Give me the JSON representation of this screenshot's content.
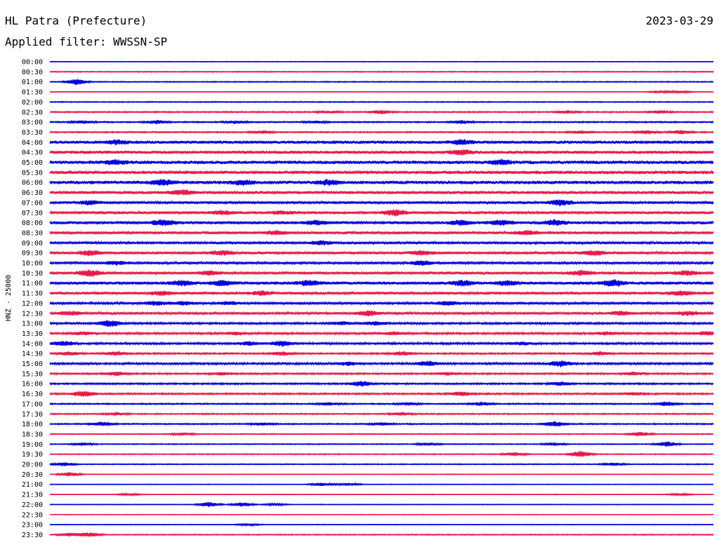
{
  "header": {
    "station": "HL Patra (Prefecture)",
    "date": "2023-03-29",
    "filter_label": "Applied filter:",
    "filter_value": "WWSSN-SP"
  },
  "chart_data": {
    "type": "line",
    "title": "HL Patra (Prefecture)",
    "ylabel": "HNZ - 25000",
    "series_colors": [
      "#0000dd",
      "#e8174a"
    ],
    "grid": false,
    "traces": [
      {
        "label": "00:00",
        "color": "#0000dd",
        "amplitude": 1.0,
        "events": []
      },
      {
        "label": "00:30",
        "color": "#e8174a",
        "amplitude": 1.5,
        "events": []
      },
      {
        "label": "01:00",
        "color": "#0000dd",
        "amplitude": 1.5,
        "events": [
          [
            0.04,
            8
          ]
        ]
      },
      {
        "label": "01:30",
        "color": "#e8174a",
        "amplitude": 1.0,
        "events": [
          [
            0.92,
            3
          ],
          [
            0.95,
            3
          ]
        ]
      },
      {
        "label": "02:00",
        "color": "#0000dd",
        "amplitude": 1.5,
        "events": []
      },
      {
        "label": "02:30",
        "color": "#e8174a",
        "amplitude": 2.0,
        "events": [
          [
            0.42,
            3
          ],
          [
            0.5,
            5
          ],
          [
            0.78,
            4
          ],
          [
            0.92,
            4
          ]
        ]
      },
      {
        "label": "03:00",
        "color": "#0000dd",
        "amplitude": 2.0,
        "events": [
          [
            0.05,
            4
          ],
          [
            0.16,
            5
          ],
          [
            0.28,
            4
          ],
          [
            0.4,
            3
          ],
          [
            0.62,
            5
          ]
        ]
      },
      {
        "label": "03:30",
        "color": "#e8174a",
        "amplitude": 2.0,
        "events": [
          [
            0.32,
            4
          ],
          [
            0.8,
            4
          ],
          [
            0.9,
            5
          ],
          [
            0.95,
            5
          ]
        ]
      },
      {
        "label": "04:00",
        "color": "#0000dd",
        "amplitude": 4.5,
        "events": [
          [
            0.62,
            6
          ],
          [
            0.1,
            5
          ]
        ]
      },
      {
        "label": "04:30",
        "color": "#e8174a",
        "amplitude": 4.5,
        "events": [
          [
            0.62,
            6
          ]
        ]
      },
      {
        "label": "05:00",
        "color": "#0000dd",
        "amplitude": 5.0,
        "events": [
          [
            0.68,
            6
          ],
          [
            0.1,
            5
          ]
        ]
      },
      {
        "label": "05:30",
        "color": "#e8174a",
        "amplitude": 5.0,
        "events": []
      },
      {
        "label": "06:00",
        "color": "#0000dd",
        "amplitude": 5.0,
        "events": [
          [
            0.17,
            7
          ],
          [
            0.29,
            6
          ],
          [
            0.42,
            6
          ]
        ]
      },
      {
        "label": "06:30",
        "color": "#e8174a",
        "amplitude": 4.5,
        "events": [
          [
            0.2,
            6
          ]
        ]
      },
      {
        "label": "07:00",
        "color": "#0000dd",
        "amplitude": 4.0,
        "events": [
          [
            0.06,
            5
          ],
          [
            0.77,
            8
          ]
        ]
      },
      {
        "label": "07:30",
        "color": "#e8174a",
        "amplitude": 4.0,
        "events": [
          [
            0.26,
            5
          ],
          [
            0.52,
            8
          ],
          [
            0.35,
            4
          ]
        ]
      },
      {
        "label": "08:00",
        "color": "#0000dd",
        "amplitude": 4.5,
        "events": [
          [
            0.17,
            8
          ],
          [
            0.4,
            5
          ],
          [
            0.62,
            6
          ],
          [
            0.68,
            6
          ],
          [
            0.76,
            6
          ]
        ]
      },
      {
        "label": "08:30",
        "color": "#e8174a",
        "amplitude": 4.0,
        "events": [
          [
            0.34,
            5
          ],
          [
            0.72,
            5
          ]
        ]
      },
      {
        "label": "09:00",
        "color": "#0000dd",
        "amplitude": 3.5,
        "events": [
          [
            0.41,
            5
          ]
        ]
      },
      {
        "label": "09:30",
        "color": "#e8174a",
        "amplitude": 4.0,
        "events": [
          [
            0.06,
            7
          ],
          [
            0.26,
            6
          ],
          [
            0.56,
            5
          ],
          [
            0.82,
            6
          ]
        ]
      },
      {
        "label": "10:00",
        "color": "#0000dd",
        "amplitude": 3.5,
        "events": [
          [
            0.1,
            5
          ],
          [
            0.56,
            6
          ]
        ]
      },
      {
        "label": "10:30",
        "color": "#e8174a",
        "amplitude": 4.0,
        "events": [
          [
            0.06,
            9
          ],
          [
            0.24,
            5
          ],
          [
            0.8,
            6
          ],
          [
            0.96,
            6
          ]
        ]
      },
      {
        "label": "11:00",
        "color": "#0000dd",
        "amplitude": 4.5,
        "events": [
          [
            0.2,
            6
          ],
          [
            0.26,
            7
          ],
          [
            0.39,
            6
          ],
          [
            0.62,
            7
          ],
          [
            0.69,
            6
          ],
          [
            0.85,
            8
          ]
        ]
      },
      {
        "label": "11:30",
        "color": "#e8174a",
        "amplitude": 4.0,
        "events": [
          [
            0.17,
            5
          ],
          [
            0.32,
            5
          ],
          [
            0.95,
            6
          ]
        ]
      },
      {
        "label": "12:00",
        "color": "#0000dd",
        "amplitude": 3.5,
        "events": [
          [
            0.16,
            5
          ],
          [
            0.2,
            5
          ],
          [
            0.27,
            4
          ],
          [
            0.6,
            5
          ]
        ]
      },
      {
        "label": "12:30",
        "color": "#e8174a",
        "amplitude": 3.5,
        "events": [
          [
            0.03,
            5
          ],
          [
            0.48,
            7
          ],
          [
            0.86,
            5
          ],
          [
            0.96,
            5
          ]
        ]
      },
      {
        "label": "13:00",
        "color": "#0000dd",
        "amplitude": 3.0,
        "events": [
          [
            0.09,
            9
          ],
          [
            0.44,
            4
          ],
          [
            0.49,
            5
          ]
        ]
      },
      {
        "label": "13:30",
        "color": "#e8174a",
        "amplitude": 3.0,
        "events": [
          [
            0.05,
            4
          ],
          [
            0.28,
            4
          ],
          [
            0.52,
            4
          ],
          [
            0.84,
            4
          ],
          [
            0.99,
            5
          ]
        ]
      },
      {
        "label": "14:00",
        "color": "#0000dd",
        "amplitude": 3.0,
        "events": [
          [
            0.02,
            6
          ],
          [
            0.3,
            5
          ],
          [
            0.35,
            7
          ],
          [
            0.71,
            4
          ]
        ]
      },
      {
        "label": "14:30",
        "color": "#e8174a",
        "amplitude": 2.5,
        "events": [
          [
            0.03,
            5
          ],
          [
            0.1,
            5
          ],
          [
            0.35,
            5
          ],
          [
            0.53,
            5
          ],
          [
            0.83,
            5
          ]
        ]
      },
      {
        "label": "15:00",
        "color": "#0000dd",
        "amplitude": 3.0,
        "events": [
          [
            0.45,
            5
          ],
          [
            0.57,
            7
          ],
          [
            0.77,
            8
          ]
        ]
      },
      {
        "label": "15:30",
        "color": "#e8174a",
        "amplitude": 2.5,
        "events": [
          [
            0.1,
            5
          ],
          [
            0.26,
            4
          ],
          [
            0.6,
            4
          ],
          [
            0.88,
            4
          ]
        ]
      },
      {
        "label": "16:00",
        "color": "#0000dd",
        "amplitude": 2.5,
        "events": [
          [
            0.47,
            7
          ],
          [
            0.77,
            5
          ]
        ]
      },
      {
        "label": "16:30",
        "color": "#e8174a",
        "amplitude": 2.5,
        "events": [
          [
            0.05,
            8
          ],
          [
            0.62,
            6
          ],
          [
            0.88,
            4
          ]
        ]
      },
      {
        "label": "17:00",
        "color": "#0000dd",
        "amplitude": 2.0,
        "events": [
          [
            0.42,
            4
          ],
          [
            0.54,
            4
          ],
          [
            0.65,
            5
          ],
          [
            0.93,
            6
          ]
        ]
      },
      {
        "label": "17:30",
        "color": "#e8174a",
        "amplitude": 2.0,
        "events": [
          [
            0.1,
            4
          ],
          [
            0.53,
            4
          ]
        ]
      },
      {
        "label": "18:00",
        "color": "#0000dd",
        "amplitude": 2.0,
        "events": [
          [
            0.08,
            6
          ],
          [
            0.32,
            4
          ],
          [
            0.5,
            4
          ],
          [
            0.76,
            7
          ]
        ]
      },
      {
        "label": "18:30",
        "color": "#e8174a",
        "amplitude": 1.5,
        "events": [
          [
            0.2,
            4
          ],
          [
            0.89,
            6
          ]
        ]
      },
      {
        "label": "19:00",
        "color": "#0000dd",
        "amplitude": 1.5,
        "events": [
          [
            0.05,
            4
          ],
          [
            0.57,
            4
          ],
          [
            0.76,
            4
          ],
          [
            0.93,
            7
          ]
        ]
      },
      {
        "label": "19:30",
        "color": "#e8174a",
        "amplitude": 1.5,
        "events": [
          [
            0.7,
            5
          ],
          [
            0.8,
            9
          ]
        ]
      },
      {
        "label": "20:00",
        "color": "#0000dd",
        "amplitude": 1.5,
        "events": [
          [
            0.02,
            5
          ],
          [
            0.85,
            4
          ]
        ]
      },
      {
        "label": "20:30",
        "color": "#e8174a",
        "amplitude": 1.0,
        "events": [
          [
            0.03,
            6
          ]
        ]
      },
      {
        "label": "21:00",
        "color": "#0000dd",
        "amplitude": 1.0,
        "events": [
          [
            0.41,
            5
          ],
          [
            0.45,
            4
          ]
        ]
      },
      {
        "label": "21:30",
        "color": "#e8174a",
        "amplitude": 1.0,
        "events": [
          [
            0.12,
            3
          ],
          [
            0.95,
            3
          ]
        ]
      },
      {
        "label": "22:00",
        "color": "#0000dd",
        "amplitude": 1.0,
        "events": [
          [
            0.24,
            7
          ],
          [
            0.29,
            6
          ],
          [
            0.34,
            3
          ]
        ]
      },
      {
        "label": "22:30",
        "color": "#e8174a",
        "amplitude": 1.0,
        "events": []
      },
      {
        "label": "23:00",
        "color": "#0000dd",
        "amplitude": 1.0,
        "events": [
          [
            0.3,
            3
          ]
        ]
      },
      {
        "label": "23:30",
        "color": "#e8174a",
        "amplitude": 1.5,
        "events": [
          [
            0.03,
            5
          ],
          [
            0.06,
            6
          ]
        ]
      }
    ]
  }
}
